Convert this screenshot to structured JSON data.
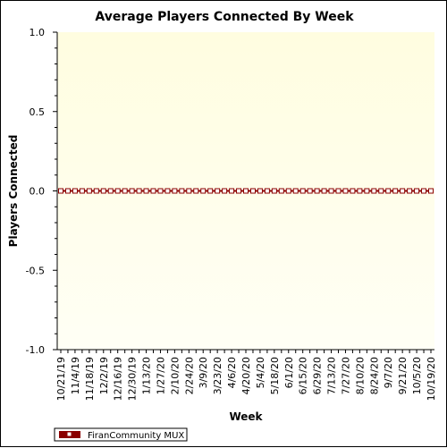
{
  "chart_data": {
    "type": "line",
    "title": "Average Players Connected By Week",
    "xlabel": "Week",
    "ylabel": "Players Connected",
    "ylim": [
      -1.0,
      1.0
    ],
    "yticks": [
      "1.0",
      "0.5",
      "0.0",
      "-0.5",
      "-1.0"
    ],
    "ytick_values": [
      1.0,
      0.5,
      0.0,
      -0.5,
      -1.0
    ],
    "grid": false,
    "legend_position": "bottom-left",
    "x": [
      "10/21/19",
      "10/28/19",
      "11/4/19",
      "11/11/19",
      "11/18/19",
      "11/25/19",
      "12/2/19",
      "12/9/19",
      "12/16/19",
      "12/23/19",
      "12/30/19",
      "1/6/20",
      "1/13/20",
      "1/20/20",
      "1/27/20",
      "2/3/20",
      "2/10/20",
      "2/17/20",
      "2/24/20",
      "3/2/20",
      "3/9/20",
      "3/16/20",
      "3/23/20",
      "3/30/20",
      "4/6/20",
      "4/13/20",
      "4/20/20",
      "4/27/20",
      "5/4/20",
      "5/11/20",
      "5/18/20",
      "5/25/20",
      "6/1/20",
      "6/8/20",
      "6/15/20",
      "6/22/20",
      "6/29/20",
      "7/6/20",
      "7/13/20",
      "7/20/20",
      "7/27/20",
      "8/3/20",
      "8/10/20",
      "8/17/20",
      "8/24/20",
      "8/31/20",
      "9/7/20",
      "9/14/20",
      "9/21/20",
      "9/28/20",
      "10/5/20",
      "10/12/20",
      "10/19/20"
    ],
    "xtick_labels": [
      "10/21/19",
      "11/4/19",
      "11/18/19",
      "12/2/19",
      "12/16/19",
      "12/30/19",
      "1/13/20",
      "1/27/20",
      "2/10/20",
      "2/24/20",
      "3/9/20",
      "3/23/20",
      "4/6/20",
      "4/20/20",
      "5/4/20",
      "5/18/20",
      "6/1/20",
      "6/15/20",
      "6/29/20",
      "7/13/20",
      "7/27/20",
      "8/10/20",
      "8/24/20",
      "9/7/20",
      "9/21/20",
      "10/5/20",
      "10/19/20"
    ],
    "series": [
      {
        "name": "FiranCommunity MUX",
        "color": "#8b0000",
        "values": [
          0,
          0,
          0,
          0,
          0,
          0,
          0,
          0,
          0,
          0,
          0,
          0,
          0,
          0,
          0,
          0,
          0,
          0,
          0,
          0,
          0,
          0,
          0,
          0,
          0,
          0,
          0,
          0,
          0,
          0,
          0,
          0,
          0,
          0,
          0,
          0,
          0,
          0,
          0,
          0,
          0,
          0,
          0,
          0,
          0,
          0,
          0,
          0,
          0,
          0,
          0,
          0,
          0
        ]
      }
    ],
    "background_colors": {
      "top": "#fffde0",
      "bottom": "#fffff5",
      "frame": "#ffffff"
    }
  }
}
